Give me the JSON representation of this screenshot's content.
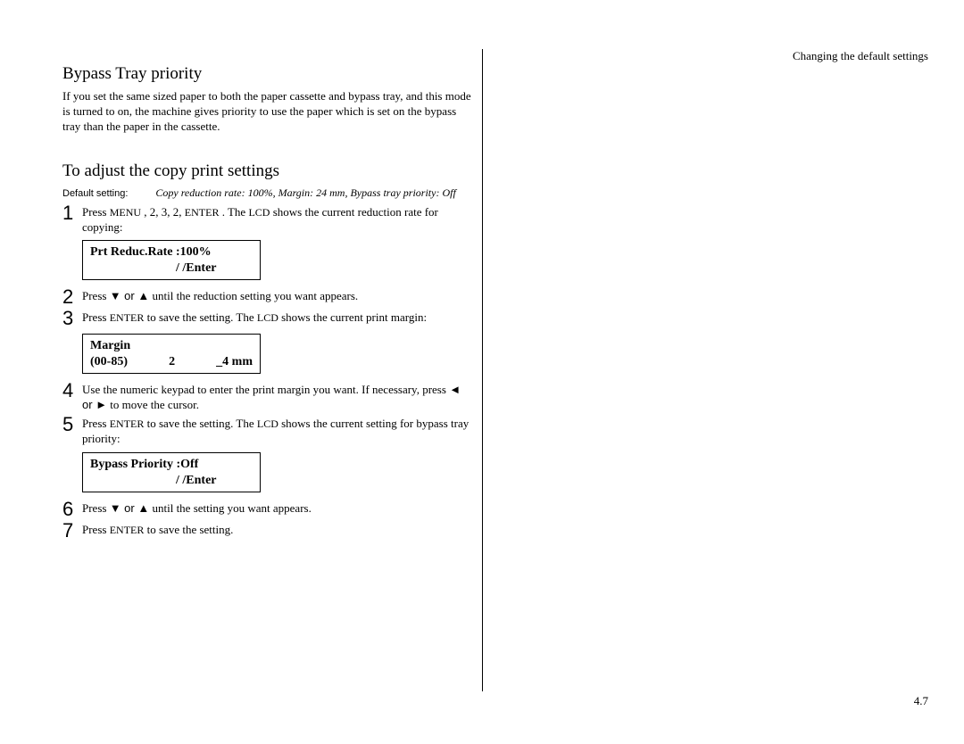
{
  "header": "Changing the default settings",
  "pageNumber": "4.7",
  "section1": {
    "title": "Bypass Tray priority",
    "intro": "If you set the same sized paper to both the paper cassette and bypass tray, and this mode is turned to on, the machine gives priority to use the paper which is set on the bypass tray than the paper in the cassette."
  },
  "section2": {
    "title": "To adjust the copy print settings",
    "defaultLabel": "Default setting:",
    "defaultValue": "Copy reduction rate: 100%, Margin: 24 mm, Bypass tray priority: Off"
  },
  "steps": [
    {
      "num": "1",
      "prefix": "Press ",
      "caps1": "MENU",
      "mid1": " , 2, 3, 2, ",
      "caps2": "ENTER",
      "mid2": " . The ",
      "caps3": "LCD",
      "suffix": " shows the current reduction rate for copying:"
    },
    {
      "num": "2",
      "prefix": "Press ",
      "arrows": "▼ or ▲",
      "suffix": " until the reduction setting you want appears."
    },
    {
      "num": "3",
      "prefix": "Press ",
      "caps1": "ENTER",
      "mid1": "  to save the setting. The ",
      "caps2": "LCD",
      "suffix": " shows the current print margin:"
    },
    {
      "num": "4",
      "prefix": "Use the numeric keypad to enter the print margin you want. If necessary, press ",
      "arrows": "◄ or ►",
      "suffix": " to move the cursor."
    },
    {
      "num": "5",
      "prefix": "Press ",
      "caps1": "ENTER",
      "mid1": "  to save the setting. The ",
      "caps2": "LCD",
      "suffix": " shows the current setting for bypass tray priority:"
    },
    {
      "num": "6",
      "prefix": "Press ",
      "arrows": "▼ or ▲",
      "suffix": " until the setting you want appears."
    },
    {
      "num": "7",
      "prefix": "Press ",
      "caps1": "ENTER",
      "suffix": "  to save the setting."
    }
  ],
  "lcd1": {
    "line1": "Prt Reduc.Rate :100%",
    "line2": "/    /Enter"
  },
  "lcd2": {
    "line1": "Margin",
    "l2a": "(00-85)",
    "l2b": "2",
    "l2c": "_4 mm"
  },
  "lcd3": {
    "line1": "Bypass Priority :Off",
    "line2": "/    /Enter"
  }
}
